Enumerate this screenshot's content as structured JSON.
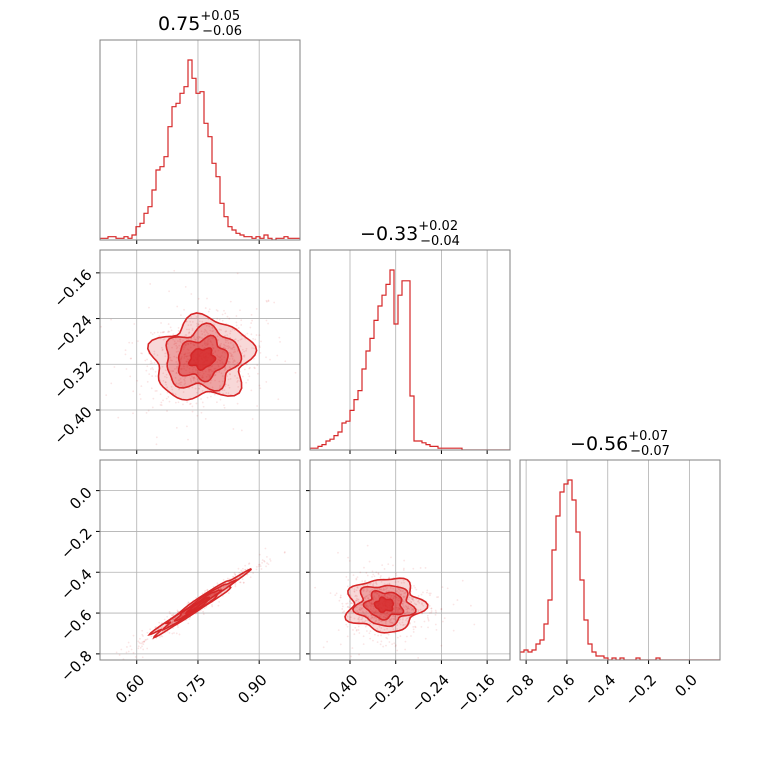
{
  "chart_data": {
    "type": "corner",
    "color": "#d62728",
    "axes_style": {
      "grid": true
    },
    "titles": [
      {
        "median": "0.75",
        "plus": "+0.05",
        "minus": "−0.06"
      },
      {
        "median": "−0.33",
        "plus": "+0.02",
        "minus": "−0.04"
      },
      {
        "median": "−0.56",
        "plus": "+0.07",
        "minus": "−0.07"
      }
    ],
    "params": [
      {
        "range": [
          0.51,
          1.0
        ],
        "ticks": [
          0.6,
          0.75,
          0.9
        ],
        "tick_labels": [
          "0.60",
          "0.75",
          "0.90"
        ]
      },
      {
        "range": [
          -0.47,
          -0.12
        ],
        "ticks": [
          -0.4,
          -0.32,
          -0.24,
          -0.16
        ],
        "tick_labels": [
          "−0.40",
          "−0.32",
          "−0.24",
          "−0.16"
        ]
      },
      {
        "range": [
          -0.83,
          0.15
        ],
        "ticks": [
          -0.8,
          -0.6,
          -0.4,
          -0.2,
          0.0
        ],
        "tick_labels": [
          "−0.8",
          "−0.6",
          "−0.4",
          "−0.2",
          "0.0"
        ]
      }
    ],
    "histograms": [
      {
        "param": 0,
        "counts": [
          1,
          1,
          2,
          2,
          1,
          1,
          2,
          1,
          3,
          8,
          10,
          16,
          20,
          30,
          42,
          44,
          50,
          68,
          80,
          82,
          88,
          92,
          108,
          97,
          88,
          89,
          70,
          62,
          46,
          38,
          22,
          14,
          8,
          6,
          4,
          3,
          2,
          2,
          1,
          2,
          1,
          3,
          1,
          0,
          1,
          1,
          2,
          1,
          1,
          1
        ]
      },
      {
        "param": 1,
        "counts": [
          1,
          1,
          2,
          3,
          5,
          6,
          8,
          10,
          15,
          16,
          22,
          28,
          33,
          45,
          55,
          62,
          72,
          80,
          86,
          92,
          100,
          70,
          86,
          94,
          94,
          30,
          5,
          5,
          4,
          3,
          2,
          2,
          1,
          1,
          1,
          1,
          1,
          1,
          0,
          0,
          0,
          0,
          0,
          0,
          0,
          0,
          0,
          0,
          0,
          0
        ]
      },
      {
        "param": 2,
        "counts": [
          4,
          5,
          4,
          5,
          8,
          10,
          18,
          30,
          55,
          72,
          84,
          88,
          90,
          80,
          64,
          40,
          20,
          8,
          4,
          2,
          2,
          1,
          0,
          1,
          0,
          1,
          0,
          0,
          0,
          1,
          0,
          0,
          0,
          0,
          1,
          0,
          0,
          0,
          0,
          0,
          0,
          0,
          0,
          0,
          0,
          0,
          0,
          0,
          0,
          0
        ]
      }
    ],
    "pairs": [
      {
        "x": 0,
        "y": 1,
        "mean": [
          0.76,
          -0.31
        ],
        "sd": [
          0.06,
          0.035
        ],
        "rho": 0.08
      },
      {
        "x": 0,
        "y": 2,
        "mean": [
          0.75,
          -0.56
        ],
        "sd": [
          0.055,
          0.075
        ],
        "rho": 0.98
      },
      {
        "x": 1,
        "y": 2,
        "mean": [
          -0.34,
          -0.56
        ],
        "sd": [
          0.032,
          0.065
        ],
        "rho": 0.0
      }
    ]
  }
}
